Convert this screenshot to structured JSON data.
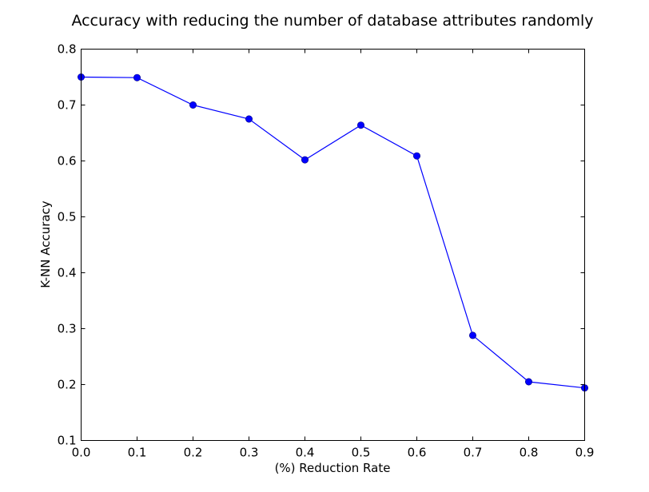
{
  "chart_data": {
    "type": "line",
    "title": "Accuracy with reducing the number of database attributes randomly",
    "xlabel": "(%) Reduction Rate",
    "ylabel": "K-NN Accuracy",
    "xlim": [
      0.0,
      0.9
    ],
    "ylim": [
      0.1,
      0.8
    ],
    "xticks": [
      "0.0",
      "0.1",
      "0.2",
      "0.3",
      "0.4",
      "0.5",
      "0.6",
      "0.7",
      "0.8",
      "0.9"
    ],
    "yticks": [
      "0.1",
      "0.2",
      "0.3",
      "0.4",
      "0.5",
      "0.6",
      "0.7",
      "0.8"
    ],
    "grid": false,
    "series": [
      {
        "color": "#0000ff",
        "marker": "circle",
        "x": [
          0.0,
          0.1,
          0.2,
          0.3,
          0.4,
          0.5,
          0.6,
          0.7,
          0.8,
          0.9
        ],
        "values": [
          0.75,
          0.749,
          0.7,
          0.675,
          0.602,
          0.664,
          0.609,
          0.288,
          0.205,
          0.194
        ]
      }
    ]
  }
}
